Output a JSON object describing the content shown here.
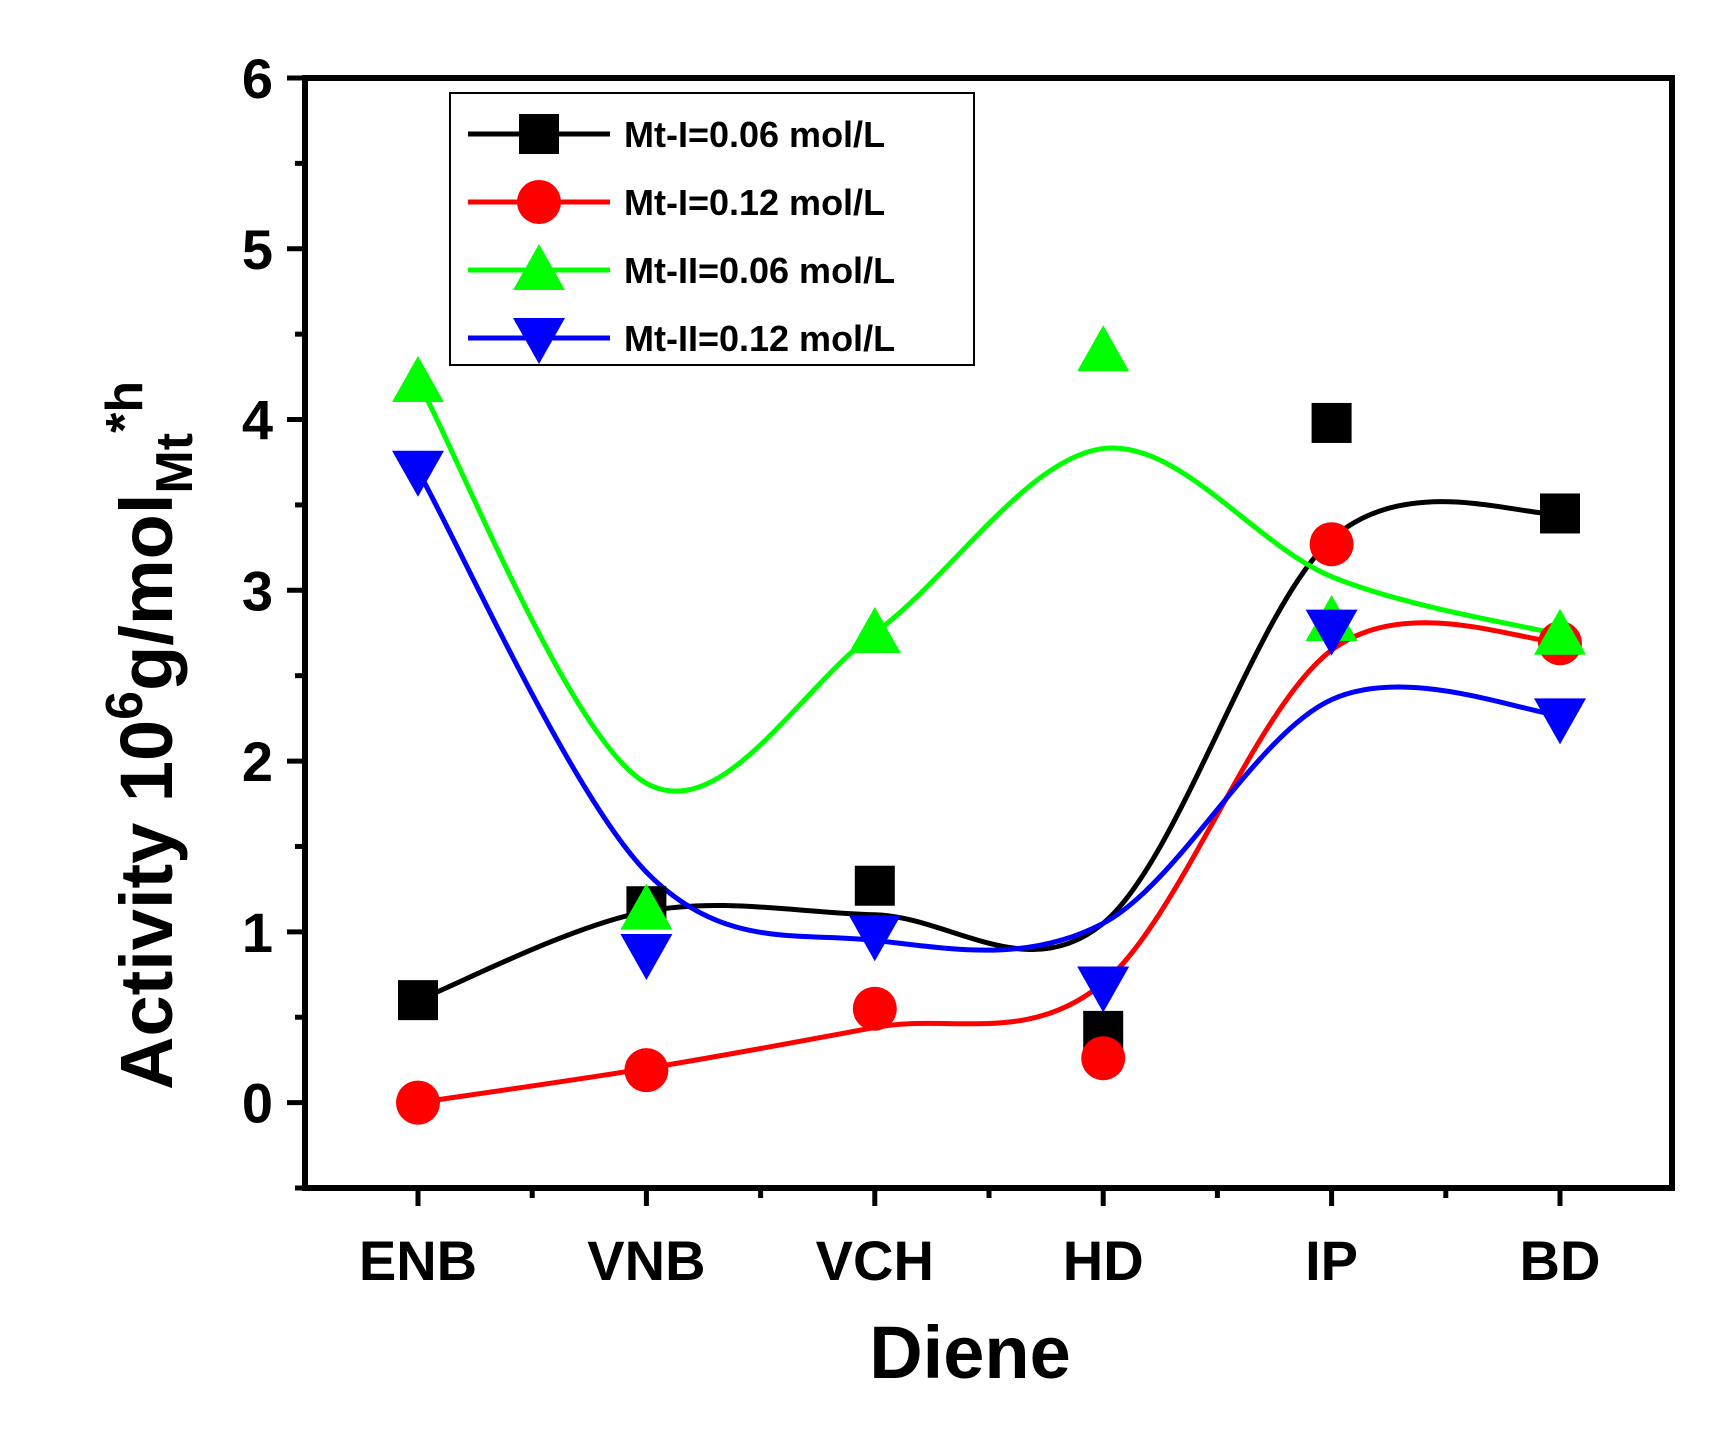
{
  "chart_data": {
    "type": "scatter",
    "title": "",
    "xlabel": "Diene",
    "ylabel": {
      "main": "Activity 10",
      "sup": "6",
      "unit": "g/mol",
      "sub": "Mt",
      "sup2": "*h"
    },
    "categories": [
      "ENB",
      "VNB",
      "VCH",
      "HD",
      "IP",
      "BD"
    ],
    "ylim": [
      -0.5,
      6
    ],
    "yticks": [
      "0",
      "1",
      "2",
      "3",
      "4",
      "5",
      "6"
    ],
    "legend_position": "top-left",
    "series": [
      {
        "name": "Mt-I=0.06 mol/L",
        "color": "#000000",
        "marker": "square",
        "values": [
          0.6,
          1.15,
          1.27,
          0.42,
          3.98,
          3.45
        ],
        "fit": [
          0.6,
          1.12,
          1.1,
          1.05,
          3.3,
          3.45
        ]
      },
      {
        "name": "Mt-I=0.12 mol/L",
        "color": "#ff0000",
        "marker": "circle",
        "values": [
          0.0,
          0.19,
          0.55,
          0.26,
          3.27,
          2.69
        ],
        "fit": [
          0.0,
          0.2,
          0.44,
          0.7,
          2.65,
          2.7
        ]
      },
      {
        "name": "Mt-II=0.06 mol/L",
        "color": "#00ff00",
        "marker": "triangle-up",
        "values": [
          4.22,
          1.13,
          2.75,
          4.4,
          2.82,
          2.74
        ],
        "fit": [
          4.22,
          1.87,
          2.75,
          3.83,
          3.08,
          2.74
        ]
      },
      {
        "name": "Mt-II=0.12 mol/L",
        "color": "#0000ff",
        "marker": "triangle-down",
        "values": [
          3.7,
          0.87,
          0.98,
          0.68,
          2.77,
          2.25
        ],
        "fit": [
          3.7,
          1.35,
          0.95,
          1.05,
          2.36,
          2.27
        ]
      }
    ]
  }
}
